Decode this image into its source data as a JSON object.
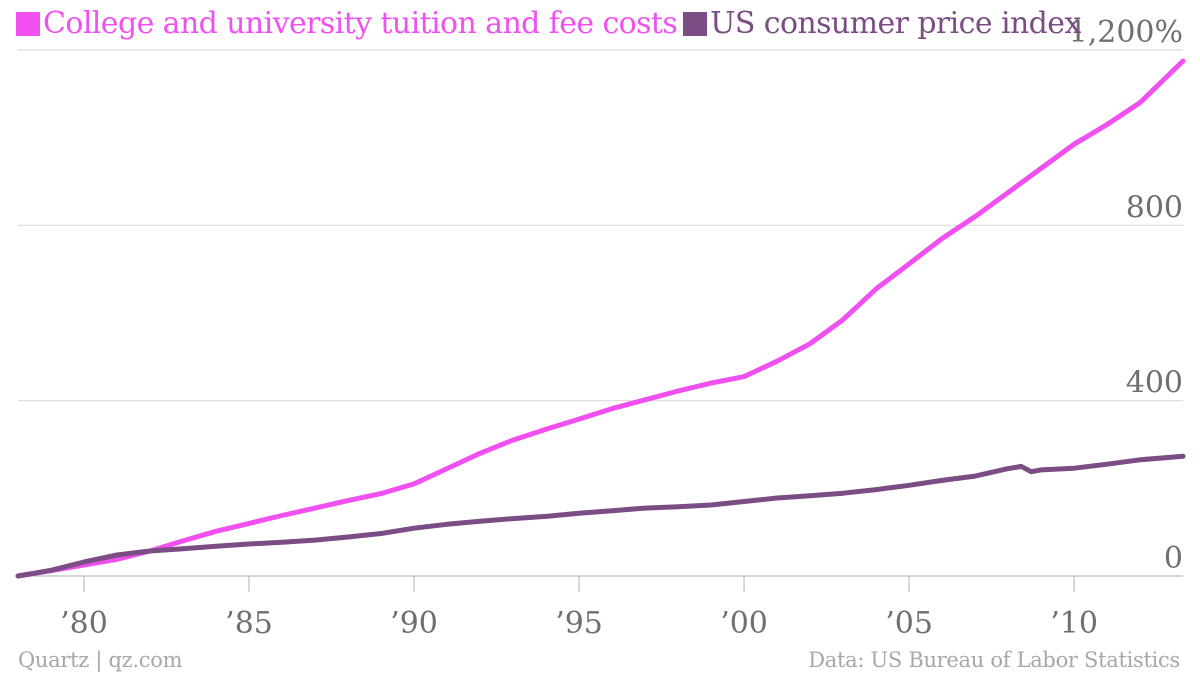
{
  "chart_data": {
    "type": "line",
    "title": "",
    "xlabel": "",
    "ylabel": "",
    "xlim": [
      1978,
      2013.3
    ],
    "ylim": [
      0,
      1200
    ],
    "x_ticks": [
      1980,
      1985,
      1990,
      1995,
      2000,
      2005,
      2010
    ],
    "x_tick_labels": [
      "’80",
      "’85",
      "’90",
      "’95",
      "’00",
      "’05",
      "’10"
    ],
    "y_ticks": [
      0,
      400,
      800,
      1200
    ],
    "y_tick_labels": [
      "0",
      "400",
      "800",
      "1,200%"
    ],
    "grid": true,
    "legend_position": "top-left",
    "series": [
      {
        "name": "College and university tuition and fee costs",
        "color": "#f050f0",
        "x": [
          1978,
          1979,
          1980,
          1981,
          1982,
          1983,
          1984,
          1985,
          1986,
          1987,
          1988,
          1989,
          1990,
          1991,
          1992,
          1993,
          1994,
          1995,
          1996,
          1997,
          1998,
          1999,
          2000,
          2001,
          2002,
          2003,
          2004,
          2005,
          2006,
          2007,
          2008,
          2009,
          2010,
          2011,
          2012,
          2013.3
        ],
        "y": [
          0,
          12,
          25,
          38,
          57,
          80,
          102,
          120,
          138,
          155,
          172,
          188,
          210,
          245,
          280,
          310,
          335,
          358,
          382,
          402,
          422,
          440,
          455,
          490,
          530,
          585,
          655,
          712,
          770,
          820,
          875,
          930,
          985,
          1030,
          1080,
          1175
        ]
      },
      {
        "name": "US consumer price index",
        "color": "#7b4d84",
        "x": [
          1978,
          1979,
          1980,
          1981,
          1982,
          1983,
          1984,
          1985,
          1986,
          1987,
          1988,
          1989,
          1990,
          1991,
          1992,
          1993,
          1994,
          1995,
          1996,
          1997,
          1998,
          1999,
          2000,
          2001,
          2002,
          2003,
          2004,
          2005,
          2006,
          2007,
          2008,
          2008.4,
          2008.7,
          2009,
          2010,
          2011,
          2012,
          2013.3
        ],
        "y": [
          0,
          13,
          32,
          48,
          57,
          62,
          68,
          73,
          77,
          82,
          89,
          97,
          109,
          118,
          125,
          131,
          136,
          143,
          149,
          155,
          158,
          162,
          170,
          178,
          183,
          189,
          197,
          207,
          218,
          228,
          245,
          250,
          238,
          242,
          246,
          255,
          265,
          273
        ]
      }
    ]
  },
  "footer": {
    "source_left": "Quartz | qz.com",
    "source_right": "Data: US Bureau of Labor Statistics"
  }
}
